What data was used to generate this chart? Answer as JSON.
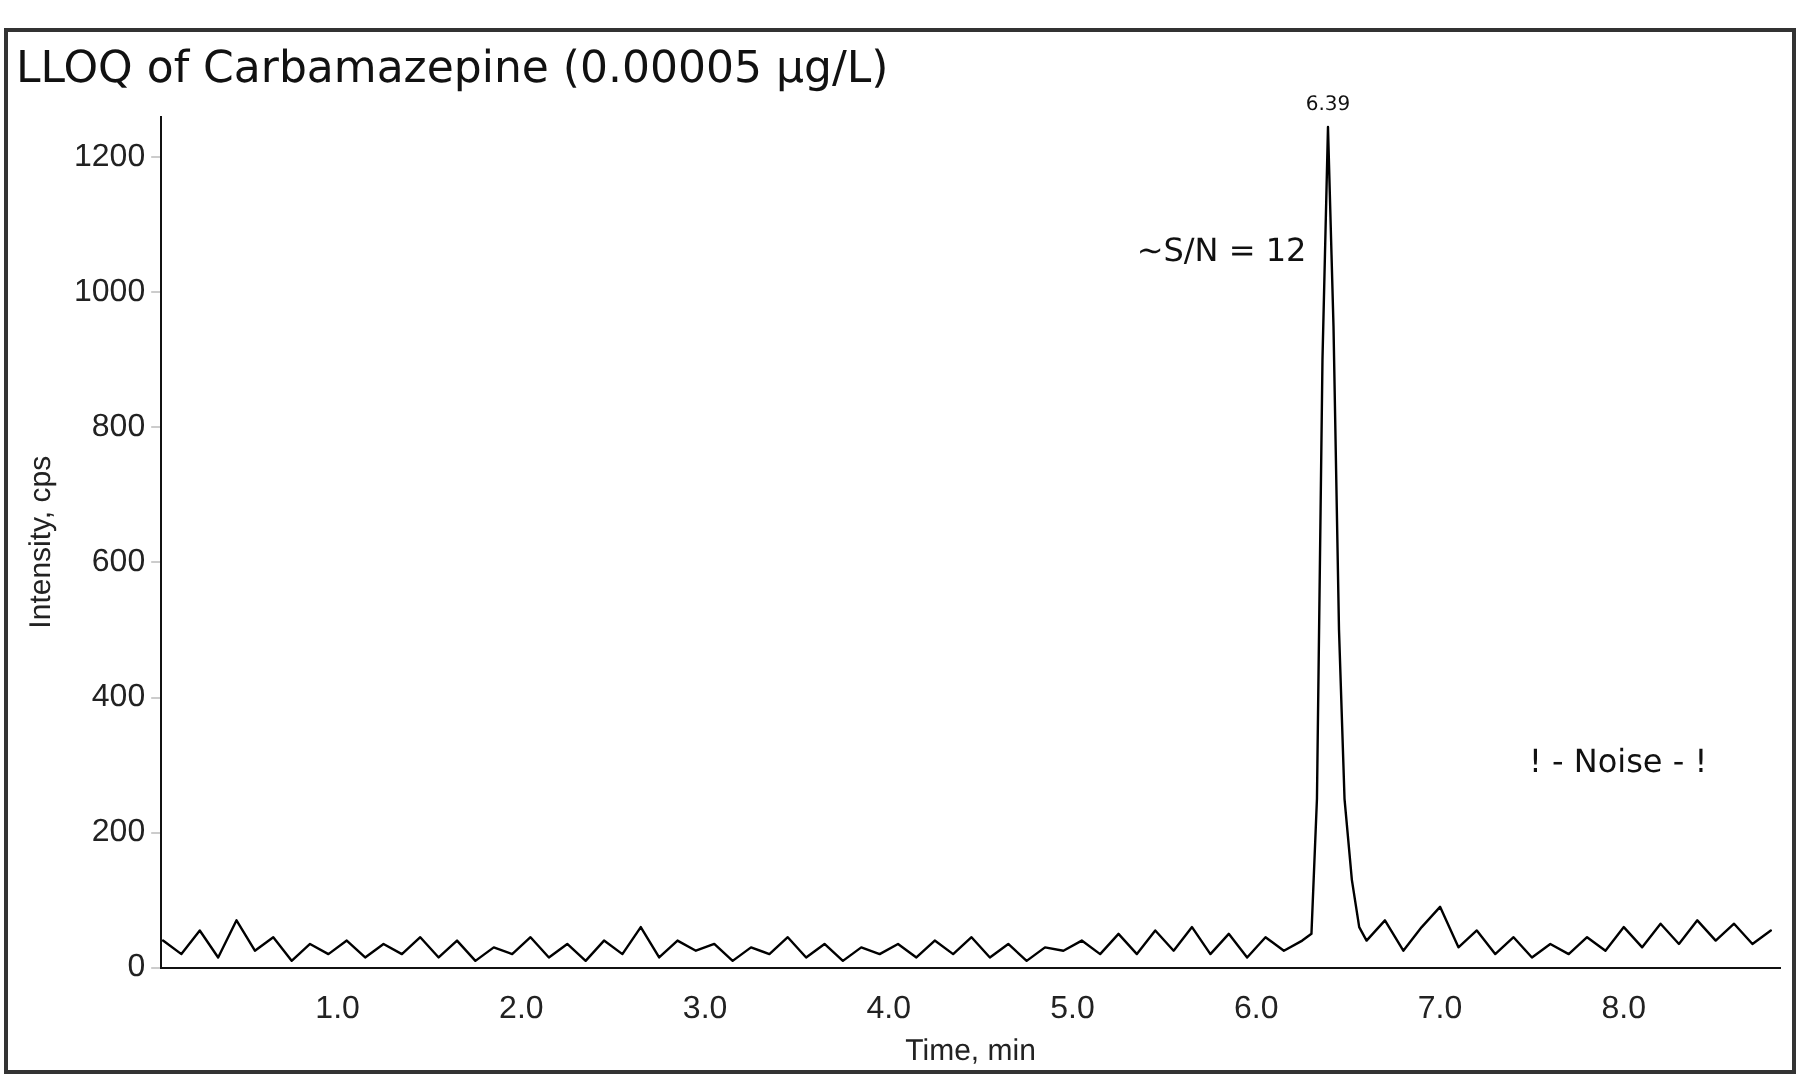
{
  "chart_data": {
    "type": "line",
    "title": "LLOQ of Carbamazepine (0.00005 µg/L)",
    "xlabel": "Time, min",
    "ylabel": "Intensity, cps",
    "xlim": [
      0.04,
      8.85
    ],
    "ylim": [
      0,
      1260
    ],
    "xticks": [
      {
        "value": 1,
        "label": "1.0"
      },
      {
        "value": 2,
        "label": "2.0"
      },
      {
        "value": 3,
        "label": "3.0"
      },
      {
        "value": 4,
        "label": "4.0"
      },
      {
        "value": 5,
        "label": "5.0"
      },
      {
        "value": 6,
        "label": "6.0"
      },
      {
        "value": 7,
        "label": "7.0"
      },
      {
        "value": 8,
        "label": "8.0"
      }
    ],
    "yticks": [
      0,
      200,
      400,
      600,
      800,
      1000,
      1200
    ],
    "grid": false,
    "legend": false,
    "marker": "none",
    "line_style": "solid",
    "annotations": [
      {
        "text": "6.39",
        "x": 6.39,
        "y": 1245
      },
      "~S/N = 12",
      "! - Noise - !"
    ],
    "series": [
      {
        "color": "#000000",
        "x": [
          0.05,
          0.15,
          0.25,
          0.35,
          0.45,
          0.55,
          0.65,
          0.75,
          0.85,
          0.95,
          1.05,
          1.15,
          1.25,
          1.35,
          1.45,
          1.55,
          1.65,
          1.75,
          1.85,
          1.95,
          2.05,
          2.15,
          2.25,
          2.35,
          2.45,
          2.55,
          2.65,
          2.75,
          2.85,
          2.95,
          3.05,
          3.15,
          3.25,
          3.35,
          3.45,
          3.55,
          3.65,
          3.75,
          3.85,
          3.95,
          4.05,
          4.15,
          4.25,
          4.35,
          4.45,
          4.55,
          4.65,
          4.75,
          4.85,
          4.95,
          5.05,
          5.15,
          5.25,
          5.35,
          5.45,
          5.55,
          5.65,
          5.75,
          5.85,
          5.95,
          6.05,
          6.15,
          6.25,
          6.3,
          6.33,
          6.36,
          6.39,
          6.42,
          6.45,
          6.48,
          6.52,
          6.56,
          6.6,
          6.7,
          6.8,
          6.9,
          7.0,
          7.1,
          7.2,
          7.3,
          7.4,
          7.5,
          7.6,
          7.7,
          7.8,
          7.9,
          8.0,
          8.1,
          8.2,
          8.3,
          8.4,
          8.5,
          8.6,
          8.7,
          8.8
        ],
        "values": [
          40,
          20,
          55,
          15,
          70,
          25,
          45,
          10,
          35,
          20,
          40,
          15,
          35,
          20,
          45,
          15,
          40,
          10,
          30,
          20,
          45,
          15,
          35,
          10,
          40,
          20,
          60,
          15,
          40,
          25,
          35,
          10,
          30,
          20,
          45,
          15,
          35,
          10,
          30,
          20,
          35,
          15,
          40,
          20,
          45,
          15,
          35,
          10,
          30,
          25,
          40,
          20,
          50,
          20,
          55,
          25,
          60,
          20,
          50,
          15,
          45,
          25,
          40,
          50,
          250,
          900,
          1245,
          950,
          500,
          250,
          130,
          60,
          40,
          70,
          25,
          60,
          90,
          30,
          55,
          20,
          45,
          15,
          35,
          20,
          45,
          25,
          60,
          30,
          65,
          35,
          70,
          40,
          65,
          35,
          55
        ]
      }
    ]
  }
}
